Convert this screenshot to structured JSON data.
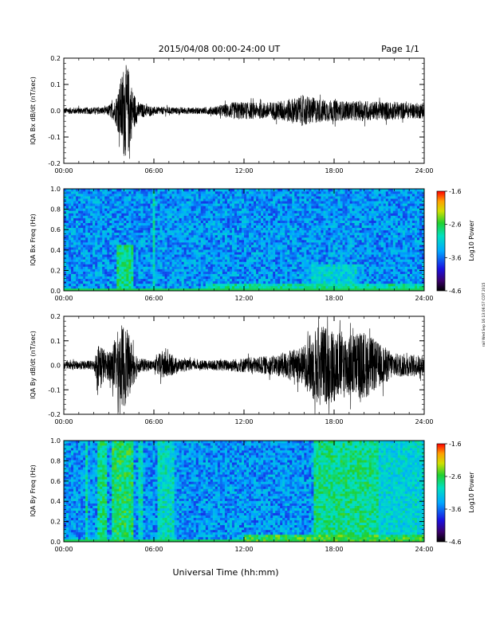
{
  "header": {
    "title": "2015/04/08  00:00-24:00 UT",
    "page": "Page 1/1"
  },
  "side_stamp": "rail Wed Sep 16 13:06:57 CDT 2015",
  "xlabel": "Universal Time (hh:mm)",
  "colorbar": {
    "label": "Log10 Power",
    "ticks": [
      "-1.6",
      "-2.6",
      "-3.6",
      "-4.6"
    ]
  },
  "chart_data": [
    {
      "type": "line",
      "ylabel": "IQA Bx dB/dt (nT/sec)",
      "xlim": [
        0,
        24
      ],
      "ylim": [
        -0.2,
        0.2
      ],
      "xticks": [
        "00:00",
        "06:00",
        "12:00",
        "18:00",
        "24:00"
      ],
      "yticks": [
        "0.2",
        "0.1",
        "0.0",
        "-0.1",
        "-0.2"
      ],
      "color": "#000000",
      "envelope": {
        "x_hours": [
          0.0,
          2.8,
          3.4,
          3.7,
          4.0,
          4.3,
          4.6,
          5.0,
          6.0,
          9.0,
          10.0,
          11.5,
          13.0,
          14.0,
          15.0,
          16.0,
          17.0,
          18.0,
          19.0,
          20.0,
          21.0,
          22.0,
          23.0,
          24.0
        ],
        "amplitude": [
          0.012,
          0.014,
          0.04,
          0.1,
          0.18,
          0.17,
          0.08,
          0.03,
          0.015,
          0.012,
          0.016,
          0.035,
          0.03,
          0.035,
          0.045,
          0.06,
          0.045,
          0.04,
          0.035,
          0.04,
          0.035,
          0.035,
          0.03,
          0.03
        ]
      }
    },
    {
      "type": "heatmap",
      "ylabel": "IQA Bx Freq (Hz)",
      "xlim": [
        0,
        24
      ],
      "ylim": [
        0.0,
        1.0
      ],
      "xticks": [
        "00:00",
        "06:00",
        "12:00",
        "18:00",
        "24:00"
      ],
      "yticks": [
        "1.0",
        "0.8",
        "0.6",
        "0.4",
        "0.2",
        "0.0"
      ],
      "zlim": [
        -4.6,
        -1.6
      ],
      "z_background": -3.45,
      "features": [
        {
          "x_start": 3.5,
          "x_end": 4.6,
          "f_max": 0.45,
          "z": -2.8
        },
        {
          "x_start": 5.9,
          "x_end": 6.0,
          "f_max": 1.0,
          "z": -3.0
        },
        {
          "x_start": 9.5,
          "x_end": 24.0,
          "f_max": 0.08,
          "z": -2.9
        },
        {
          "x_start": 16.5,
          "x_end": 19.5,
          "f_max": 0.25,
          "z": -3.1
        }
      ]
    },
    {
      "type": "line",
      "ylabel": "IQA By dB/dt (nT/sec)",
      "xlim": [
        0,
        24
      ],
      "ylim": [
        -0.2,
        0.2
      ],
      "xticks": [
        "00:00",
        "06:00",
        "12:00",
        "18:00",
        "24:00"
      ],
      "yticks": [
        "0.2",
        "0.1",
        "0.0",
        "-0.1",
        "-0.2"
      ],
      "color": "#000000",
      "envelope": {
        "x_hours": [
          0.0,
          2.0,
          2.4,
          2.8,
          3.2,
          3.6,
          4.0,
          4.5,
          5.0,
          6.0,
          6.5,
          7.0,
          7.5,
          8.5,
          10.0,
          12.0,
          13.0,
          14.0,
          15.0,
          16.0,
          16.5,
          17.0,
          18.0,
          19.0,
          20.0,
          21.0,
          22.0,
          23.0,
          24.0
        ],
        "amplitude": [
          0.015,
          0.02,
          0.11,
          0.05,
          0.08,
          0.14,
          0.18,
          0.1,
          0.03,
          0.02,
          0.06,
          0.05,
          0.03,
          0.02,
          0.02,
          0.03,
          0.035,
          0.04,
          0.06,
          0.08,
          0.14,
          0.17,
          0.15,
          0.13,
          0.14,
          0.09,
          0.05,
          0.045,
          0.04
        ]
      }
    },
    {
      "type": "heatmap",
      "ylabel": "IQA By Freq (Hz)",
      "xlim": [
        0,
        24
      ],
      "ylim": [
        0.0,
        1.0
      ],
      "xticks": [
        "00:00",
        "06:00",
        "12:00",
        "18:00",
        "24:00"
      ],
      "yticks": [
        "1.0",
        "0.8",
        "0.6",
        "0.4",
        "0.2",
        "0.0"
      ],
      "zlim": [
        -4.6,
        -1.6
      ],
      "z_background": -3.45,
      "features": [
        {
          "x_start": 1.5,
          "x_end": 1.6,
          "f_max": 1.0,
          "z": -2.9
        },
        {
          "x_start": 2.3,
          "x_end": 2.9,
          "f_max": 1.0,
          "z": -2.8
        },
        {
          "x_start": 3.2,
          "x_end": 4.6,
          "f_max": 1.0,
          "z": -2.7
        },
        {
          "x_start": 5.0,
          "x_end": 5.2,
          "f_max": 1.0,
          "z": -3.0
        },
        {
          "x_start": 6.2,
          "x_end": 7.4,
          "f_max": 1.0,
          "z": -3.0
        },
        {
          "x_start": 16.6,
          "x_end": 21.0,
          "f_max": 1.0,
          "z": -2.8
        },
        {
          "x_start": 21.0,
          "x_end": 24.0,
          "f_max": 1.0,
          "z": -3.1
        },
        {
          "x_start": 12.0,
          "x_end": 24.0,
          "f_max": 0.06,
          "z": -2.6
        }
      ]
    }
  ]
}
